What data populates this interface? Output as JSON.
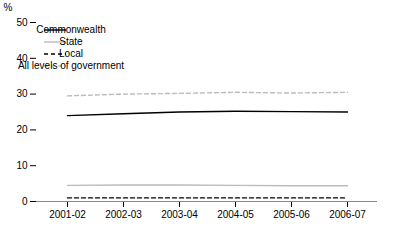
{
  "chart_data": {
    "type": "line",
    "categories": [
      "2001-02",
      "2002-03",
      "2003-04",
      "2004-05",
      "2005-06",
      "2006-07"
    ],
    "series": [
      {
        "name": "Commonwealth",
        "color": "#000000",
        "line_style": "solid",
        "values": [
          24.0,
          24.5,
          25.0,
          25.2,
          25.1,
          25.0
        ]
      },
      {
        "name": "State",
        "color": "#bbbbbb",
        "line_style": "solid",
        "values": [
          4.5,
          4.6,
          4.6,
          4.5,
          4.4,
          4.4
        ]
      },
      {
        "name": "Local",
        "color": "#000000",
        "line_style": "dashed",
        "values": [
          1.0,
          1.0,
          1.0,
          1.0,
          1.0,
          1.0
        ]
      },
      {
        "name": "All levels of government",
        "color": "#bbbbbb",
        "line_style": "dashed",
        "values": [
          29.5,
          30.0,
          30.2,
          30.5,
          30.3,
          30.5
        ]
      }
    ],
    "ylabel": "%",
    "ylim": [
      0,
      50
    ],
    "yticks": [
      0,
      10,
      20,
      30,
      40,
      50
    ],
    "grid": false,
    "legend": "upper left"
  }
}
